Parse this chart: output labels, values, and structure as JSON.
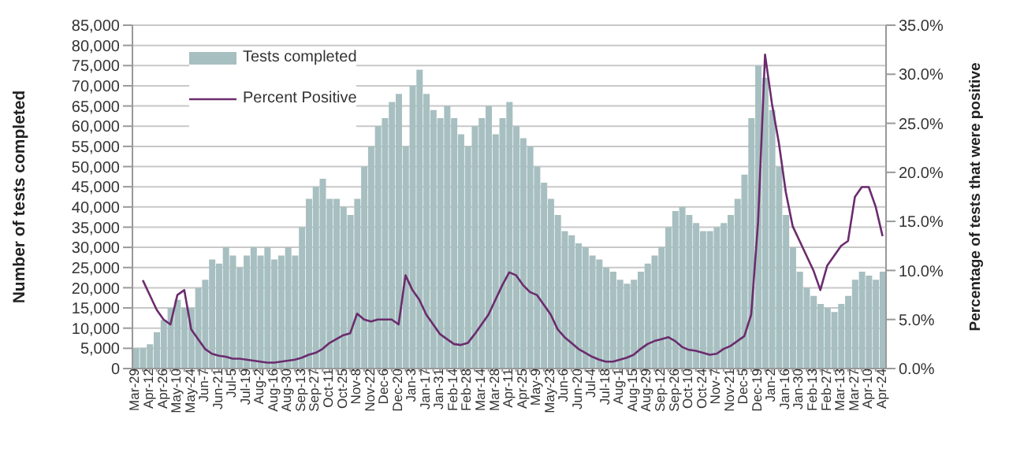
{
  "chart_data": {
    "type": "bar",
    "xlabel": null,
    "ylabel": "Number of tests completed",
    "y2label": "Percentage of tests that were positive",
    "categories": [
      "Mar-29",
      null,
      "Apr-12",
      null,
      "Apr-26",
      null,
      "May-10",
      null,
      "May-24",
      null,
      "Jun-7",
      null,
      "Jun-21",
      null,
      "Jul-5",
      null,
      "Jul-19",
      null,
      "Aug-2",
      null,
      "Aug-16",
      null,
      "Aug-30",
      null,
      "Sep-13",
      null,
      "Sep-27",
      null,
      "Oct-11",
      null,
      "Oct-25",
      null,
      "Nov-8",
      null,
      "Nov-22",
      null,
      "Dec-6",
      null,
      "Dec-20",
      null,
      "Jan-3",
      null,
      "Jan-17",
      null,
      "Jan-31",
      null,
      "Feb-14",
      null,
      "Feb-28",
      null,
      "Mar-14",
      null,
      "Mar-28",
      null,
      "Apr-11",
      null,
      "Apr-25",
      null,
      "May-9",
      null,
      "May-23",
      null,
      "Jun-6",
      null,
      "Jun-20",
      null,
      "Jul-4",
      null,
      "Jul-18",
      null,
      "Aug-1",
      null,
      "Aug-15",
      null,
      "Aug-29",
      null,
      "Sep-12",
      null,
      "Sep-26",
      null,
      "Oct-10",
      null,
      "Oct-24",
      null,
      "Nov-7",
      null,
      "Nov-21",
      null,
      "Dec-5",
      null,
      "Dec-19",
      null,
      "Jan-2",
      null,
      "Jan-16",
      null,
      "Jan-30",
      null,
      "Feb-13",
      null,
      "Feb-27",
      null,
      "Mar-13",
      null,
      "Mar-27",
      null,
      "Apr-10",
      null,
      "Apr-24"
    ],
    "series": [
      {
        "name": "Tests completed",
        "color": "#a7bfc0",
        "values": [
          5000,
          5000,
          6000,
          9000,
          12000,
          15000,
          17000,
          15000,
          15000,
          20000,
          22000,
          27000,
          26000,
          30000,
          28000,
          25000,
          28000,
          30000,
          28000,
          30000,
          27000,
          28000,
          30000,
          28000,
          35000,
          42000,
          45000,
          47000,
          42000,
          42000,
          40000,
          38000,
          42000,
          50000,
          55000,
          60000,
          62000,
          66000,
          68000,
          55000,
          70000,
          74000,
          68000,
          64000,
          62000,
          65000,
          62000,
          58000,
          55000,
          60000,
          62000,
          65000,
          58000,
          62000,
          66000,
          60000,
          57000,
          55000,
          50000,
          46000,
          42000,
          38000,
          34000,
          33000,
          31000,
          30000,
          28000,
          27000,
          25000,
          24000,
          22000,
          21000,
          22000,
          24000,
          26000,
          28000,
          30000,
          35000,
          39000,
          40000,
          38000,
          36000,
          34000,
          34000,
          35000,
          36000,
          38000,
          42000,
          48000,
          62000,
          75000,
          72000,
          64000,
          50000,
          38000,
          30000,
          24000,
          20000,
          18000,
          16000,
          15000,
          14000,
          16000,
          18000,
          22000,
          24000,
          23000,
          22000,
          24000
        ]
      },
      {
        "name": "Percent Positive",
        "type": "line",
        "axis": "y2",
        "color": "#6b2c6e",
        "values": [
          null,
          9.0,
          7.5,
          6.0,
          5.0,
          4.5,
          7.5,
          8.0,
          4.0,
          3.0,
          2.0,
          1.5,
          1.3,
          1.2,
          1.0,
          1.0,
          0.9,
          0.8,
          0.7,
          0.6,
          0.6,
          0.7,
          0.8,
          0.9,
          1.1,
          1.4,
          1.6,
          2.0,
          2.6,
          3.0,
          3.4,
          3.6,
          5.6,
          5.0,
          4.8,
          5.0,
          5.0,
          5.0,
          4.5,
          9.5,
          8.0,
          7.0,
          5.5,
          4.5,
          3.5,
          3.0,
          2.5,
          2.4,
          2.6,
          3.5,
          4.5,
          5.5,
          7.0,
          8.5,
          9.8,
          9.5,
          8.5,
          7.8,
          7.5,
          6.5,
          5.5,
          4.0,
          3.2,
          2.6,
          2.0,
          1.6,
          1.2,
          0.9,
          0.7,
          0.7,
          0.9,
          1.1,
          1.4,
          2.0,
          2.5,
          2.8,
          3.0,
          3.2,
          2.8,
          2.2,
          1.9,
          1.8,
          1.6,
          1.4,
          1.5,
          2.0,
          2.3,
          2.8,
          3.3,
          5.5,
          15.0,
          32.0,
          27.0,
          23.0,
          18.0,
          14.5,
          13.0,
          11.5,
          10.0,
          8.0,
          10.5,
          11.5,
          12.5,
          13.0,
          17.5,
          18.5,
          18.5,
          16.5,
          13.5
        ]
      }
    ],
    "ylim": [
      0,
      85000
    ],
    "yticks": [
      0,
      {
        "value": 5000,
        "label": "5,000"
      },
      {
        "value": 10000,
        "label": "10,000"
      },
      {
        "value": 15000,
        "label": "15,000"
      },
      {
        "value": 20000,
        "label": "20,000"
      },
      {
        "value": 25000,
        "label": "25,000"
      },
      {
        "value": 30000,
        "label": "30,000"
      },
      {
        "value": 35000,
        "label": "35,000"
      },
      {
        "value": 40000,
        "label": "40,000"
      },
      {
        "value": 45000,
        "label": "45,000"
      },
      {
        "value": 50000,
        "label": "50,000"
      },
      {
        "value": 55000,
        "label": "55,000"
      },
      {
        "value": 60000,
        "label": "60,000"
      },
      {
        "value": 65000,
        "label": "65,000"
      },
      {
        "value": 70000,
        "label": "70,000"
      },
      {
        "value": 75000,
        "label": "75,000"
      },
      {
        "value": 80000,
        "label": "80,000"
      },
      {
        "value": 85000,
        "label": "85,000"
      }
    ],
    "y2lim": [
      0,
      35
    ],
    "y2ticks": [
      {
        "value": 0,
        "label": "0.0%"
      },
      {
        "value": 5,
        "label": "5.0%"
      },
      {
        "value": 10,
        "label": "10.0%"
      },
      {
        "value": 15,
        "label": "15.0%"
      },
      {
        "value": 20,
        "label": "20.0%"
      },
      {
        "value": 25,
        "label": "25.0%"
      },
      {
        "value": 30,
        "label": "30.0%"
      },
      {
        "value": 35,
        "label": "35.0%"
      }
    ],
    "grid": "y",
    "legend": "top left",
    "marker": "none",
    "line_style": "solid"
  }
}
